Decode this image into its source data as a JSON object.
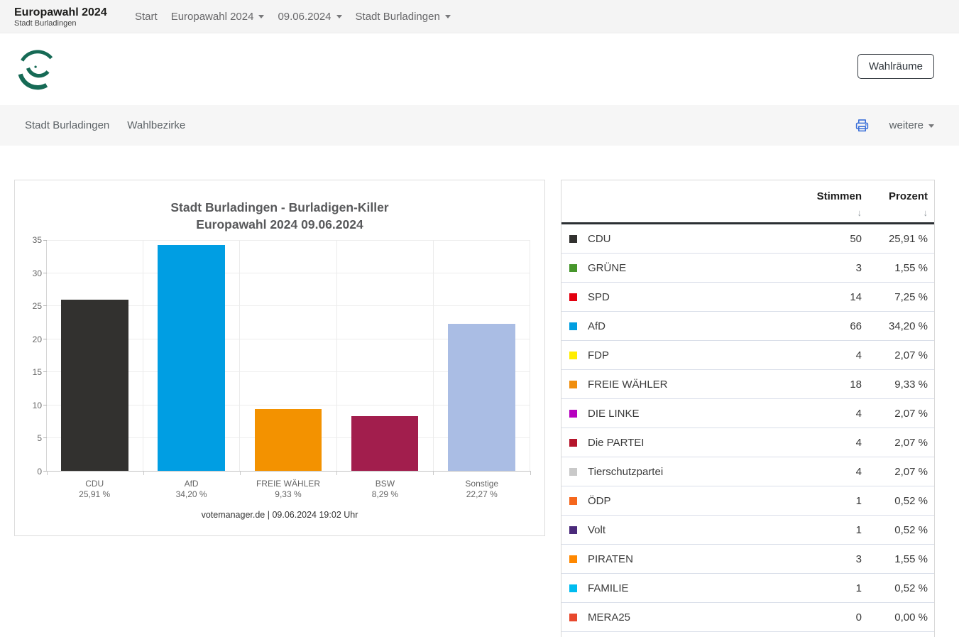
{
  "navbar": {
    "brand": {
      "title": "Europawahl 2024",
      "subtitle": "Stadt Burladingen"
    },
    "items": [
      {
        "label": "Start",
        "dropdown": false
      },
      {
        "label": "Europawahl 2024",
        "dropdown": true
      },
      {
        "label": "09.06.2024",
        "dropdown": true
      },
      {
        "label": "Stadt Burladingen",
        "dropdown": true
      }
    ]
  },
  "header": {
    "wahlraeume_button_label": "Wahlräume"
  },
  "subnav": {
    "items": [
      {
        "label": "Stadt Burladingen"
      },
      {
        "label": "Wahlbezirke"
      }
    ],
    "more_label": "weitere",
    "printer_icon_color": "#3a6fd8"
  },
  "chart_data": {
    "type": "bar",
    "title": "Stadt Burladingen - Burladigen-Killer",
    "subtitle": "Europawahl 2024 09.06.2024",
    "categories": [
      "CDU",
      "AfD",
      "FREIE WÄHLER",
      "BSW",
      "Sonstige"
    ],
    "values": [
      25.91,
      34.2,
      9.33,
      8.29,
      22.27
    ],
    "bar_labels": [
      "25,91 %",
      "34,20 %",
      "9,33 %",
      "8,29 %",
      "22,27 %"
    ],
    "bar_colors": [
      "#32312f",
      "#009ee3",
      "#f39200",
      "#a21e4d",
      "#aabde4"
    ],
    "ylim": [
      0,
      35
    ],
    "yticks": [
      0,
      5,
      10,
      15,
      20,
      25,
      30,
      35
    ],
    "grid": true,
    "legend": false,
    "footer": "votemanager.de | 09.06.2024 19:02 Uhr"
  },
  "table": {
    "columns": [
      {
        "label": "Stimmen",
        "sort_icon": "↓"
      },
      {
        "label": "Prozent",
        "sort_icon": "↓"
      }
    ],
    "rows": [
      {
        "party": "CDU",
        "color": "#32312f",
        "votes": "50",
        "percent": "25,91 %"
      },
      {
        "party": "GRÜNE",
        "color": "#46962b",
        "votes": "3",
        "percent": "1,55 %"
      },
      {
        "party": "SPD",
        "color": "#e3000f",
        "votes": "14",
        "percent": "7,25 %"
      },
      {
        "party": "AfD",
        "color": "#009ee0",
        "votes": "66",
        "percent": "34,20 %"
      },
      {
        "party": "FDP",
        "color": "#ffed00",
        "votes": "4",
        "percent": "2,07 %"
      },
      {
        "party": "FREIE WÄHLER",
        "color": "#f08e0e",
        "votes": "18",
        "percent": "9,33 %"
      },
      {
        "party": "DIE LINKE",
        "color": "#b700bf",
        "votes": "4",
        "percent": "2,07 %"
      },
      {
        "party": "Die PARTEI",
        "color": "#b5152b",
        "votes": "4",
        "percent": "2,07 %"
      },
      {
        "party": "Tierschutzpartei",
        "color": "#c9c9c9",
        "votes": "4",
        "percent": "2,07 %"
      },
      {
        "party": "ÖDP",
        "color": "#f5671d",
        "votes": "1",
        "percent": "0,52 %"
      },
      {
        "party": "Volt",
        "color": "#4b2a7b",
        "votes": "1",
        "percent": "0,52 %"
      },
      {
        "party": "PIRATEN",
        "color": "#ff8800",
        "votes": "3",
        "percent": "1,55 %"
      },
      {
        "party": "FAMILIE",
        "color": "#00bcf0",
        "votes": "1",
        "percent": "0,52 %"
      },
      {
        "party": "MERA25",
        "color": "#e8482d",
        "votes": "0",
        "percent": "0,00 %"
      }
    ]
  }
}
